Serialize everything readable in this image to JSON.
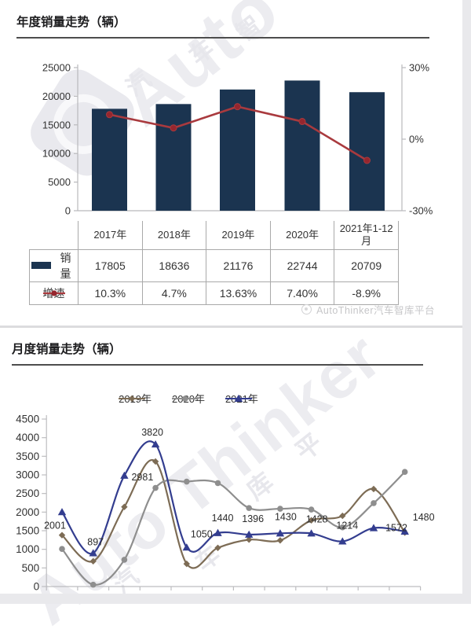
{
  "annual_section": {
    "title": "年度销量走势（辆）"
  },
  "monthly_section": {
    "title": "月度销量走势（辆）"
  },
  "attribution": {
    "text": "AutoThinker汽车智库平台"
  },
  "watermark": {
    "brand_top": "Auto",
    "brand_bottom": "Auto Thinker",
    "cjk": [
      "汽",
      "车",
      "智",
      "平",
      "库",
      "车",
      "汽"
    ]
  },
  "chart_data": [
    {
      "id": "annual",
      "type": "bar",
      "title": "年度销量走势（辆）",
      "categories": [
        "2017年",
        "2018年",
        "2019年",
        "2020年",
        "2021年1-12月"
      ],
      "series": [
        {
          "name": "销量",
          "type": "bar",
          "axis": "left",
          "color": "#1b3450",
          "values": [
            17805,
            18636,
            21176,
            22744,
            20709
          ]
        },
        {
          "name": "增速",
          "type": "line",
          "axis": "right",
          "color": "#a93a3e",
          "marker": "circle",
          "marker_color": "#96262e",
          "values_pct": [
            10.3,
            4.7,
            13.63,
            7.4,
            -8.9
          ],
          "value_labels": [
            "10.3%",
            "4.7%",
            "13.63%",
            "7.40%",
            "-8.9%"
          ]
        }
      ],
      "left_axis": {
        "ticks": [
          "0",
          "5000",
          "10000",
          "15000",
          "20000",
          "25000"
        ],
        "min": 0,
        "max": 25000
      },
      "right_axis": {
        "ticks": [
          "30%",
          "0%",
          "-30%"
        ],
        "min": -30,
        "max": 30
      },
      "legend_position": "table-rows",
      "grid": false
    },
    {
      "id": "monthly",
      "type": "line",
      "title": "月度销量走势（辆）",
      "months_count": 12,
      "series": [
        {
          "name": "2019年",
          "color": "#7d6c55",
          "marker": "diamond",
          "values": [
            1380,
            680,
            2140,
            3360,
            610,
            1040,
            1260,
            1240,
            1780,
            1900,
            2620,
            1450
          ]
        },
        {
          "name": "2020年",
          "color": "#8e8e8e",
          "marker": "circle",
          "values": [
            1010,
            50,
            720,
            2650,
            2820,
            2780,
            2110,
            2090,
            2070,
            1590,
            2240,
            3080
          ]
        },
        {
          "name": "2021年",
          "color": "#333d8f",
          "marker": "triangle",
          "values": [
            2001,
            897,
            2981,
            3820,
            1050,
            1440,
            1396,
            1430,
            1428,
            1214,
            1572,
            1480
          ],
          "point_labels": [
            "2001",
            "897",
            "2981",
            "3820",
            "1050",
            "1440",
            "1396",
            "1430",
            "1428",
            "1214",
            "1572",
            "1480"
          ]
        }
      ],
      "y_axis": {
        "ticks": [
          "0",
          "500",
          "1000",
          "1500",
          "2000",
          "2500",
          "3000",
          "3500",
          "4000",
          "4500"
        ],
        "min": 0,
        "max": 4500
      },
      "legend_position": "top-center",
      "grid": false
    }
  ]
}
